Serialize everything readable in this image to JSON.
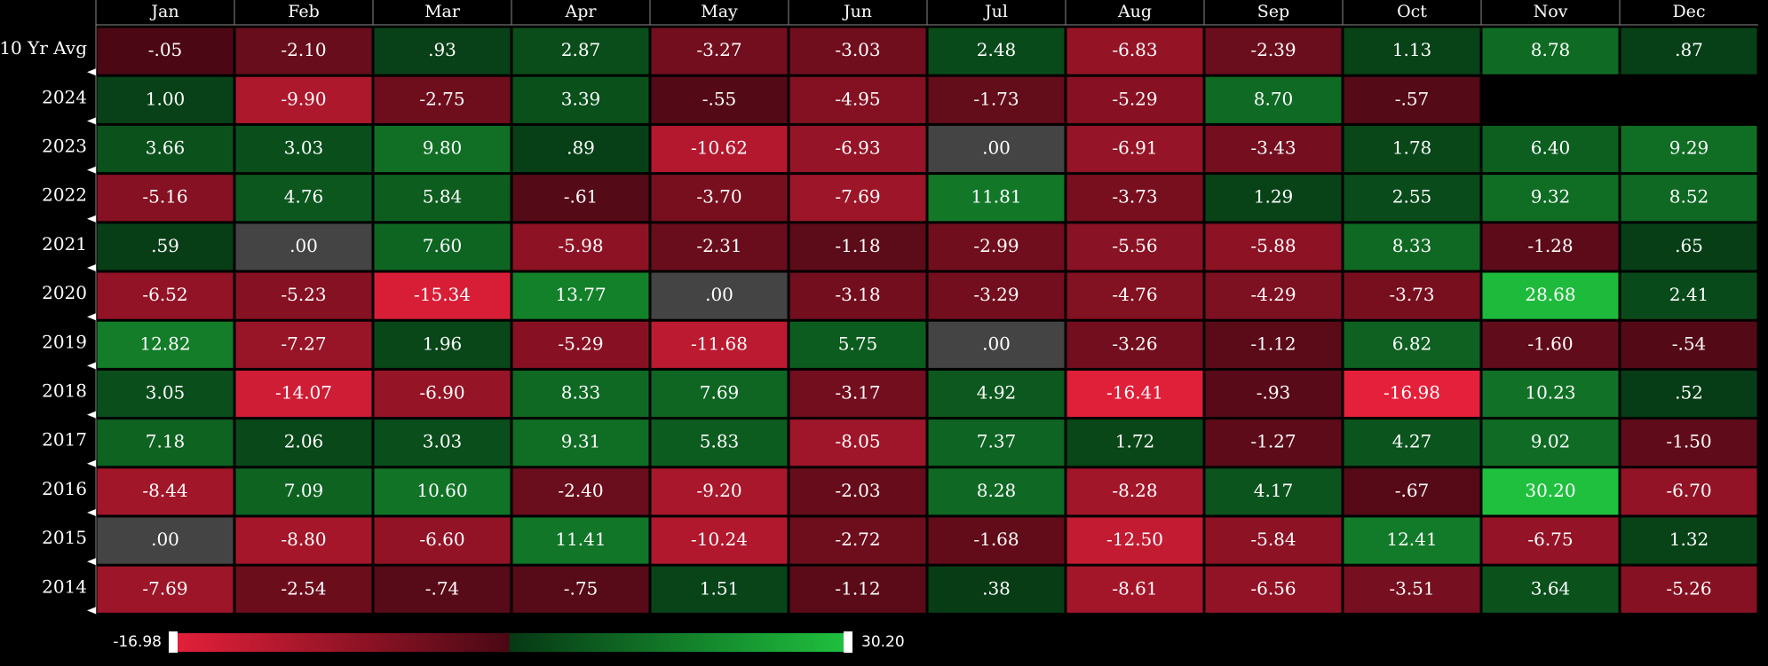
{
  "table": {
    "columns": [
      "Jan",
      "Feb",
      "Mar",
      "Apr",
      "May",
      "Jun",
      "Jul",
      "Aug",
      "Sep",
      "Oct",
      "Nov",
      "Dec"
    ],
    "rows": [
      {
        "label": "10 Yr Avg",
        "cells": [
          "-.05",
          "-2.10",
          ".93",
          "2.87",
          "-3.27",
          "-3.03",
          "2.48",
          "-6.83",
          "-2.39",
          "1.13",
          "8.78",
          ".87"
        ]
      },
      {
        "label": "2024",
        "cells": [
          "1.00",
          "-9.90",
          "-2.75",
          "3.39",
          "-.55",
          "-4.95",
          "-1.73",
          "-5.29",
          "8.70",
          "-.57",
          null,
          null
        ]
      },
      {
        "label": "2023",
        "cells": [
          "3.66",
          "3.03",
          "9.80",
          ".89",
          "-10.62",
          "-6.93",
          ".00",
          "-6.91",
          "-3.43",
          "1.78",
          "6.40",
          "9.29"
        ]
      },
      {
        "label": "2022",
        "cells": [
          "-5.16",
          "4.76",
          "5.84",
          "-.61",
          "-3.70",
          "-7.69",
          "11.81",
          "-3.73",
          "1.29",
          "2.55",
          "9.32",
          "8.52"
        ]
      },
      {
        "label": "2021",
        "cells": [
          ".59",
          ".00",
          "7.60",
          "-5.98",
          "-2.31",
          "-1.18",
          "-2.99",
          "-5.56",
          "-5.88",
          "8.33",
          "-1.28",
          ".65"
        ]
      },
      {
        "label": "2020",
        "cells": [
          "-6.52",
          "-5.23",
          "-15.34",
          "13.77",
          ".00",
          "-3.18",
          "-3.29",
          "-4.76",
          "-4.29",
          "-3.73",
          "28.68",
          "2.41"
        ]
      },
      {
        "label": "2019",
        "cells": [
          "12.82",
          "-7.27",
          "1.96",
          "-5.29",
          "-11.68",
          "5.75",
          ".00",
          "-3.26",
          "-1.12",
          "6.82",
          "-1.60",
          "-.54"
        ]
      },
      {
        "label": "2018",
        "cells": [
          "3.05",
          "-14.07",
          "-6.90",
          "8.33",
          "7.69",
          "-3.17",
          "4.92",
          "-16.41",
          "-.93",
          "-16.98",
          "10.23",
          ".52"
        ]
      },
      {
        "label": "2017",
        "cells": [
          "7.18",
          "2.06",
          "3.03",
          "9.31",
          "5.83",
          "-8.05",
          "7.37",
          "1.72",
          "-1.27",
          "4.27",
          "9.02",
          "-1.50"
        ]
      },
      {
        "label": "2016",
        "cells": [
          "-8.44",
          "7.09",
          "10.60",
          "-2.40",
          "-9.20",
          "-2.03",
          "8.28",
          "-8.28",
          "4.17",
          "-.67",
          "30.20",
          "-6.70"
        ]
      },
      {
        "label": "2015",
        "cells": [
          ".00",
          "-8.80",
          "-6.60",
          "11.41",
          "-10.24",
          "-2.72",
          "-1.68",
          "-12.50",
          "-5.84",
          "12.41",
          "-6.75",
          "1.32"
        ]
      },
      {
        "label": "2014",
        "cells": [
          "-7.69",
          "-2.54",
          "-.74",
          "-.75",
          "1.51",
          "-1.12",
          ".38",
          "-8.61",
          "-6.56",
          "-3.51",
          "3.64",
          "-5.26"
        ]
      }
    ]
  },
  "legend": {
    "min": "-16.98",
    "max": "30.20"
  }
}
